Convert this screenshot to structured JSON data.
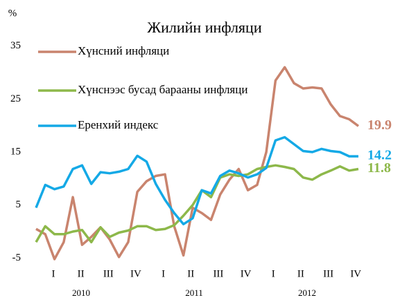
{
  "chart_data": {
    "type": "line",
    "title": "Жилийн инфляци",
    "y_label": "%",
    "quarters": [
      "I",
      "II",
      "III",
      "IV",
      "I",
      "II",
      "III",
      "IV",
      "I",
      "II",
      "III",
      "IV"
    ],
    "years": [
      "2010",
      "2011",
      "2012"
    ],
    "ylim": [
      -6,
      36
    ],
    "yticks": [
      35,
      25,
      15,
      5,
      -5
    ],
    "grid": false,
    "legend": "upper left",
    "series": [
      {
        "name": "Хүнсний инфляци",
        "color": "#c9846e",
        "values": [
          0.5,
          -0.5,
          -5.2,
          -2,
          6.5,
          -2.5,
          -1,
          0.8,
          -1.5,
          -4.8,
          -2,
          7.5,
          9.5,
          10.5,
          10.8,
          1,
          -4.5,
          4.5,
          3.5,
          2.2,
          7,
          9.8,
          11.8,
          7.8,
          8.8,
          15,
          28.5,
          31,
          28,
          27,
          27.2,
          27,
          24,
          21.8,
          21.2,
          19.9
        ]
      },
      {
        "name": "Хүнснээс бусад барааны инфляци",
        "color": "#8db84a",
        "values": [
          -2,
          1,
          -0.5,
          -0.5,
          0,
          0.3,
          -2,
          0.8,
          -1,
          -0.2,
          0.2,
          1,
          1,
          0.3,
          0.5,
          1.2,
          3,
          5,
          7.8,
          6.5,
          10.2,
          10.8,
          10.5,
          10.8,
          11.8,
          12.2,
          12.5,
          12.2,
          11.8,
          10.2,
          9.8,
          10.8,
          11.5,
          12.3,
          11.5,
          11.8
        ]
      },
      {
        "name": "Еренхий индекс",
        "color": "#14a9e6",
        "values": [
          4.5,
          8.8,
          8,
          8.5,
          11.8,
          12.5,
          9,
          11.2,
          11,
          11.3,
          11.8,
          14.3,
          13.2,
          9,
          6,
          3.5,
          1.4,
          2.5,
          7.8,
          7.2,
          10.5,
          11.5,
          11,
          10.2,
          10.8,
          12,
          17.2,
          17.8,
          16.5,
          15.2,
          15,
          15.6,
          15.2,
          15,
          14.2,
          14.2
        ]
      }
    ]
  }
}
